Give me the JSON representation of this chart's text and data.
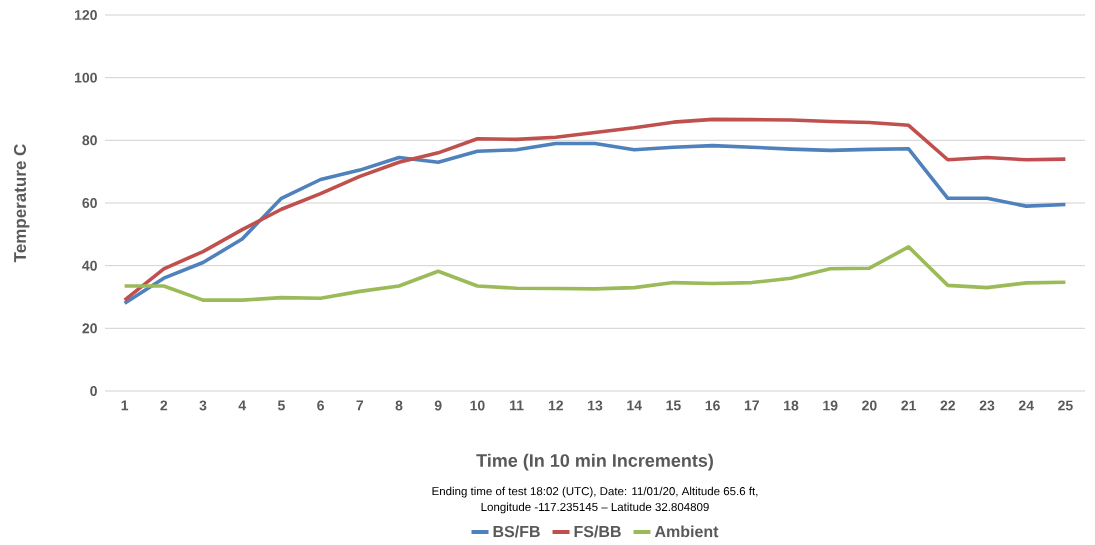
{
  "chart_data": {
    "type": "line",
    "xlabel": "Time (In 10 min Increments)",
    "ylabel": "Temperature C",
    "annotations": [
      "Ending time of test 18:02 (UTC), Date: 11/01/20, Altitude 65.6 ft,",
      "Longitude -117.235145 – Latitude 32.804809"
    ],
    "categories": [
      "1",
      "2",
      "3",
      "4",
      "5",
      "6",
      "7",
      "8",
      "9",
      "10",
      "11",
      "12",
      "13",
      "14",
      "15",
      "16",
      "17",
      "18",
      "19",
      "20",
      "21",
      "22",
      "23",
      "24",
      "25"
    ],
    "series": [
      {
        "name": "BS/FB",
        "color": "#4f81bd",
        "values": [
          28,
          36,
          41,
          48.5,
          61.5,
          67.5,
          70.5,
          74.5,
          73,
          76.5,
          77,
          79,
          79,
          77,
          77.8,
          78.3,
          77.8,
          77.2,
          76.8,
          77.1,
          77.3,
          61.5,
          61.5,
          59,
          59.5
        ]
      },
      {
        "name": "FS/BB",
        "color": "#c0504d",
        "values": [
          29,
          39,
          44.5,
          51.5,
          58,
          63,
          68.5,
          73,
          76,
          80.5,
          80.3,
          81,
          82.5,
          84,
          85.8,
          86.7,
          86.6,
          86.5,
          86,
          85.7,
          84.8,
          73.8,
          74.5,
          73.8,
          74
        ]
      },
      {
        "name": "Ambient",
        "color": "#9bbb59",
        "values": [
          33.5,
          33.5,
          29,
          29,
          29.8,
          29.6,
          31.8,
          33.5,
          38.2,
          33.5,
          32.8,
          32.7,
          32.6,
          33,
          34.6,
          34.3,
          34.6,
          36,
          39,
          39.2,
          46,
          33.7,
          33,
          34.5,
          34.7
        ]
      }
    ],
    "ylim": [
      0,
      120
    ],
    "yticks": [
      0,
      20,
      40,
      60,
      80,
      100,
      120
    ],
    "grid": "y",
    "legend": "bottom",
    "line_style": "solid",
    "marker": "none"
  }
}
